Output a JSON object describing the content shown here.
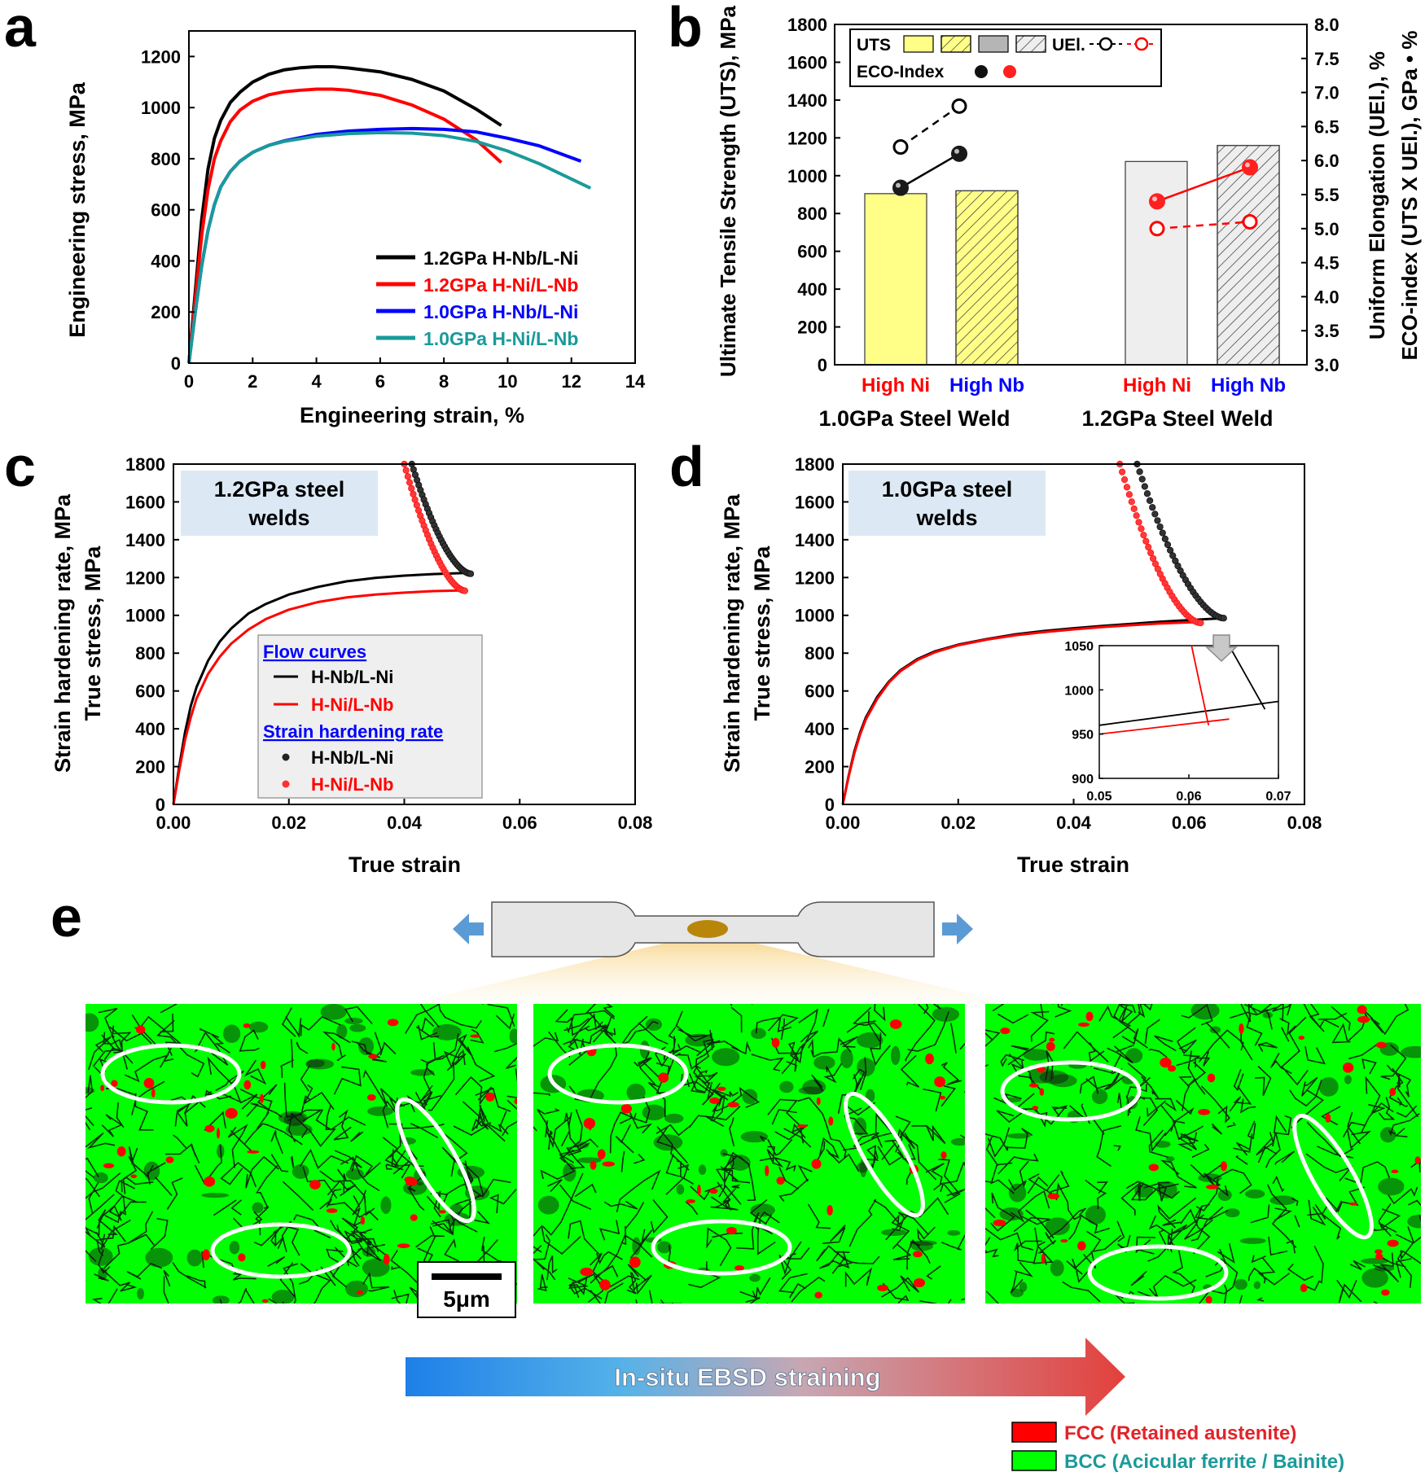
{
  "panels": {
    "a": {
      "letter": "a"
    },
    "b": {
      "letter": "b"
    },
    "c": {
      "letter": "c",
      "box_label_l1": "1.2GPa steel",
      "box_label_l2": "welds"
    },
    "d": {
      "letter": "d",
      "box_label_l1": "1.0GPa steel",
      "box_label_l2": "welds"
    },
    "e": {
      "letter": "e"
    }
  },
  "colors": {
    "black": "#000000",
    "red": "#ff0000",
    "blue": "#0000ff",
    "teal": "#1a9a9a",
    "uts_yellow": "#ffff88",
    "uts_gray": "#dddddd",
    "box_blue": "#dce9f5",
    "bcc_green": "#00ff00",
    "fcc_red": "#ff0000"
  },
  "chart_data": [
    {
      "id": "a",
      "type": "line",
      "xlabel": "Engineering strain, %",
      "ylabel": "Engineering stress, MPa",
      "xlim": [
        0,
        14
      ],
      "ylim": [
        0,
        1300
      ],
      "xticks": [
        0,
        2,
        4,
        6,
        8,
        10,
        12,
        14
      ],
      "yticks": [
        0,
        200,
        400,
        600,
        800,
        1000,
        1200
      ],
      "series": [
        {
          "name": "1.2GPa H-Nb/L-Ni",
          "color": "#000000",
          "x": [
            0,
            0.2,
            0.4,
            0.6,
            0.8,
            1.0,
            1.3,
            1.6,
            2.0,
            2.5,
            3.0,
            3.5,
            4.0,
            4.5,
            5.0,
            6.0,
            7.0,
            8.0,
            9.0,
            9.8
          ],
          "y": [
            0,
            280,
            560,
            760,
            880,
            950,
            1020,
            1060,
            1100,
            1130,
            1148,
            1156,
            1160,
            1160,
            1155,
            1140,
            1110,
            1065,
            995,
            930
          ]
        },
        {
          "name": "1.2GPa H-Ni/L-Nb",
          "color": "#ff0000",
          "x": [
            0,
            0.2,
            0.4,
            0.6,
            0.8,
            1.0,
            1.3,
            1.6,
            2.0,
            2.5,
            3.0,
            3.5,
            4.0,
            4.5,
            5.0,
            6.0,
            7.0,
            8.0,
            9.0,
            9.8
          ],
          "y": [
            0,
            250,
            500,
            680,
            800,
            870,
            945,
            990,
            1025,
            1050,
            1062,
            1068,
            1072,
            1072,
            1068,
            1048,
            1010,
            955,
            875,
            785
          ]
        },
        {
          "name": "1.0GPa H-Nb/L-Ni",
          "color": "#0000ff",
          "x": [
            0,
            0.2,
            0.4,
            0.6,
            0.8,
            1.0,
            1.3,
            1.6,
            2.0,
            2.5,
            3.0,
            4.0,
            5.0,
            6.0,
            7.0,
            8.0,
            9.0,
            10.0,
            11.0,
            12.3
          ],
          "y": [
            0,
            200,
            380,
            520,
            620,
            690,
            750,
            790,
            825,
            852,
            870,
            895,
            908,
            915,
            918,
            915,
            905,
            880,
            850,
            790
          ]
        },
        {
          "name": "1.0GPa H-Ni/L-Nb",
          "color": "#1a9a9a",
          "x": [
            0,
            0.2,
            0.4,
            0.6,
            0.8,
            1.0,
            1.3,
            1.6,
            2.0,
            2.5,
            3.0,
            4.0,
            5.0,
            6.0,
            7.0,
            8.0,
            9.0,
            10.0,
            11.0,
            12.6
          ],
          "y": [
            0,
            200,
            380,
            520,
            620,
            690,
            750,
            790,
            825,
            852,
            868,
            888,
            898,
            902,
            900,
            890,
            868,
            830,
            780,
            685
          ]
        }
      ]
    },
    {
      "id": "b",
      "type": "bar",
      "ylabel": "Ultimate Tensile Strength (UTS), MPa",
      "ylabel2": "Uniform Elongation (UEl.), %",
      "ylabel2b": "ECO-index (UTS X UEl.), GPa • %",
      "ylim": [
        0,
        1800
      ],
      "ylim2": [
        3.0,
        8.0
      ],
      "yticks": [
        0,
        200,
        400,
        600,
        800,
        1000,
        1200,
        1400,
        1600,
        1800
      ],
      "yticks2": [
        "3.0",
        "3.5",
        "4.0",
        "4.5",
        "5.0",
        "5.5",
        "6.0",
        "6.5",
        "7.0",
        "7.5",
        "8.0"
      ],
      "categories": [
        "High Ni",
        "High Nb",
        "High Ni",
        "High Nb"
      ],
      "groups": [
        "1.0GPa Steel Weld",
        "1.2GPa Steel Weld"
      ],
      "uts": [
        905,
        920,
        1075,
        1160
      ],
      "uel": [
        6.2,
        6.8,
        5.0,
        5.1
      ],
      "eco_index": [
        5.6,
        6.1,
        5.4,
        5.9
      ],
      "legend": {
        "uts": "UTS",
        "uel": "UEl.",
        "eco": "ECO-Index"
      }
    },
    {
      "id": "c",
      "type": "line",
      "xlabel": "True strain",
      "ylabel": "Strain hardening rate, MPa",
      "ylabel2": "True stress, MPa",
      "xlim": [
        0,
        0.08
      ],
      "ylim": [
        0,
        1800
      ],
      "xticks": [
        "0.00",
        "0.02",
        "0.04",
        "0.06",
        "0.08"
      ],
      "yticks": [
        0,
        200,
        400,
        600,
        800,
        1000,
        1200,
        1400,
        1600,
        1800
      ],
      "legend": {
        "flow_title": "Flow curves",
        "shr_title": "Strain hardening rate",
        "s1": "H-Nb/L-Ni",
        "s2": "H-Ni/L-Nb"
      },
      "flow": [
        {
          "name": "H-Nb/L-Ni",
          "color": "#000000",
          "x": [
            0,
            0.001,
            0.002,
            0.003,
            0.004,
            0.006,
            0.008,
            0.01,
            0.013,
            0.016,
            0.02,
            0.025,
            0.03,
            0.035,
            0.04,
            0.045,
            0.0515
          ],
          "y": [
            0,
            200,
            380,
            520,
            620,
            760,
            860,
            930,
            1010,
            1060,
            1110,
            1150,
            1180,
            1198,
            1210,
            1218,
            1225
          ]
        },
        {
          "name": "H-Ni/L-Nb",
          "color": "#ff0000",
          "x": [
            0,
            0.001,
            0.002,
            0.003,
            0.004,
            0.006,
            0.008,
            0.01,
            0.013,
            0.016,
            0.02,
            0.025,
            0.03,
            0.035,
            0.04,
            0.045,
            0.0505
          ],
          "y": [
            0,
            180,
            340,
            460,
            560,
            690,
            780,
            850,
            925,
            980,
            1030,
            1070,
            1095,
            1110,
            1120,
            1128,
            1132
          ]
        }
      ],
      "hardening": [
        {
          "name": "H-Nb/L-Ni",
          "color": "#000000",
          "x0": 0.0413,
          "x1": 0.0515,
          "y0": 1800,
          "y1": 1220
        },
        {
          "name": "H-Ni/L-Nb",
          "color": "#ff0000",
          "x0": 0.04,
          "x1": 0.0505,
          "y0": 1800,
          "y1": 1130
        }
      ]
    },
    {
      "id": "d",
      "type": "line",
      "xlabel": "True strain",
      "ylabel": "Strain hardening rate, MPa",
      "ylabel2": "True stress, MPa",
      "xlim": [
        0,
        0.08
      ],
      "ylim": [
        0,
        1800
      ],
      "xticks": [
        "0.00",
        "0.02",
        "0.04",
        "0.06",
        "0.08"
      ],
      "yticks": [
        0,
        200,
        400,
        600,
        800,
        1000,
        1200,
        1400,
        1600,
        1800
      ],
      "flow": [
        {
          "name": "H-Nb/L-Ni",
          "color": "#000000",
          "x": [
            0,
            0.001,
            0.002,
            0.003,
            0.004,
            0.006,
            0.008,
            0.01,
            0.013,
            0.016,
            0.02,
            0.025,
            0.03,
            0.035,
            0.04,
            0.045,
            0.05,
            0.055,
            0.06,
            0.066
          ],
          "y": [
            0,
            150,
            280,
            380,
            460,
            570,
            650,
            710,
            770,
            810,
            845,
            875,
            900,
            918,
            932,
            944,
            955,
            966,
            975,
            985
          ]
        },
        {
          "name": "H-Ni/L-Nb",
          "color": "#ff0000",
          "x": [
            0,
            0.001,
            0.002,
            0.003,
            0.004,
            0.006,
            0.008,
            0.01,
            0.013,
            0.016,
            0.02,
            0.025,
            0.03,
            0.035,
            0.04,
            0.045,
            0.05,
            0.055,
            0.062
          ],
          "y": [
            0,
            145,
            270,
            370,
            450,
            560,
            645,
            705,
            765,
            805,
            842,
            872,
            895,
            912,
            926,
            938,
            948,
            957,
            965
          ]
        }
      ],
      "hardening": [
        {
          "name": "H-Nb/L-Ni",
          "color": "#000000",
          "x0": 0.051,
          "x1": 0.066,
          "y0": 1800,
          "y1": 985
        },
        {
          "name": "H-Ni/L-Nb",
          "color": "#ff0000",
          "x0": 0.048,
          "x1": 0.062,
          "y0": 1800,
          "y1": 960
        }
      ],
      "inset": {
        "xlim": [
          0.05,
          0.07
        ],
        "ylim": [
          900,
          1050
        ],
        "xticks": [
          "0.05",
          "0.06",
          "0.07"
        ],
        "yticks": [
          "900",
          "950",
          "1000",
          "1050"
        ],
        "flow_black": {
          "x": [
            0.05,
            0.07
          ],
          "y": [
            960,
            987
          ]
        },
        "flow_red": {
          "x": [
            0.05,
            0.0645
          ],
          "y": [
            950,
            967
          ]
        },
        "hard_black": {
          "x": [
            0.0645,
            0.0685
          ],
          "y": [
            1050,
            978
          ]
        },
        "hard_red": {
          "x": [
            0.0603,
            0.0622
          ],
          "y": [
            1050,
            960
          ]
        }
      }
    }
  ],
  "panel_e": {
    "scalebar": "5μm",
    "arrow_label": "In-situ EBSD straining",
    "legend_fcc": "FCC (Retained austenite)",
    "legend_bcc": "BCC (Acicular ferrite / Bainite)"
  }
}
